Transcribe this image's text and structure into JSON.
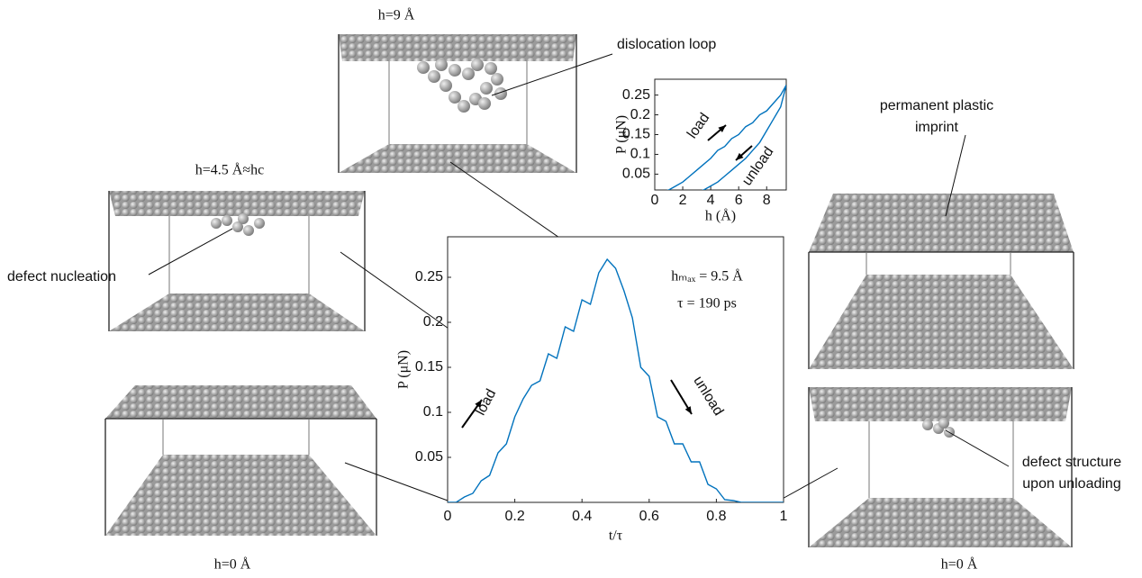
{
  "chart_data": [
    {
      "type": "line",
      "x_label": "t/τ",
      "y_label": "P (μN)",
      "color": "#0072bd",
      "x": [
        0,
        0.025,
        0.05,
        0.075,
        0.1,
        0.125,
        0.15,
        0.175,
        0.2,
        0.225,
        0.25,
        0.275,
        0.3,
        0.325,
        0.35,
        0.375,
        0.4,
        0.425,
        0.45,
        0.475,
        0.5,
        0.525,
        0.55,
        0.575,
        0.6,
        0.625,
        0.65,
        0.675,
        0.7,
        0.725,
        0.75,
        0.775,
        0.8,
        0.825,
        0.85,
        0.875,
        0.9,
        0.925,
        0.95,
        0.975,
        1
      ],
      "values": [
        0,
        0,
        0.006,
        0.01,
        0.024,
        0.03,
        0.055,
        0.065,
        0.095,
        0.115,
        0.13,
        0.135,
        0.165,
        0.16,
        0.195,
        0.19,
        0.225,
        0.22,
        0.255,
        0.27,
        0.26,
        0.235,
        0.205,
        0.15,
        0.14,
        0.095,
        0.09,
        0.065,
        0.065,
        0.045,
        0.045,
        0.02,
        0.015,
        0.003,
        0.002,
        0,
        0,
        0,
        0,
        0,
        0
      ],
      "xlim": [
        0,
        1
      ],
      "xticks": [
        0,
        0.2,
        0.4,
        0.6,
        0.8,
        1
      ],
      "ylim": [
        0,
        0.295
      ],
      "yticks": [
        0.05,
        0.1,
        0.15,
        0.2,
        0.25
      ],
      "annotations": [
        "hₘₐₓ = 9.5 Å",
        "τ = 190 ps",
        "load",
        "unload"
      ]
    },
    {
      "type": "line",
      "x_label": "h (Å)",
      "y_label": "P (μN)",
      "x": [
        0,
        0.5,
        1,
        1.5,
        2,
        2.5,
        3,
        3.5,
        4,
        4.5,
        5,
        5.5,
        6,
        6.5,
        7,
        7.5,
        8,
        8.5,
        9,
        9.4
      ],
      "series": [
        {
          "name": "load",
          "color": "#0072bd",
          "values": [
            0,
            0.005,
            0.01,
            0.02,
            0.03,
            0.045,
            0.06,
            0.075,
            0.09,
            0.11,
            0.12,
            0.14,
            0.15,
            0.17,
            0.18,
            0.2,
            0.21,
            0.23,
            0.25,
            0.275
          ]
        },
        {
          "name": "unload",
          "color": "#0072bd",
          "values": [
            0,
            0,
            0,
            0,
            0,
            0,
            0.005,
            0.01,
            0.02,
            0.03,
            0.045,
            0.06,
            0.075,
            0.09,
            0.11,
            0.13,
            0.16,
            0.19,
            0.22,
            0.275
          ]
        }
      ],
      "xlim": [
        0,
        9.4
      ],
      "xticks": [
        0,
        2,
        4,
        6,
        8
      ],
      "ylim": [
        0.01,
        0.29
      ],
      "yticks": [
        0.05,
        0.1,
        0.15,
        0.2,
        0.25
      ]
    }
  ],
  "snapshots": [
    "h=9 Å",
    "h=4.5 Å≈hc",
    "h=0 Å",
    "h=0 Å"
  ],
  "annotations": {
    "dislocation": "dislocation loop",
    "nucleation": "defect nucleation",
    "imprint": [
      "permanent plastic",
      "imprint"
    ],
    "structure": [
      "defect structure",
      "upon unloading"
    ]
  }
}
